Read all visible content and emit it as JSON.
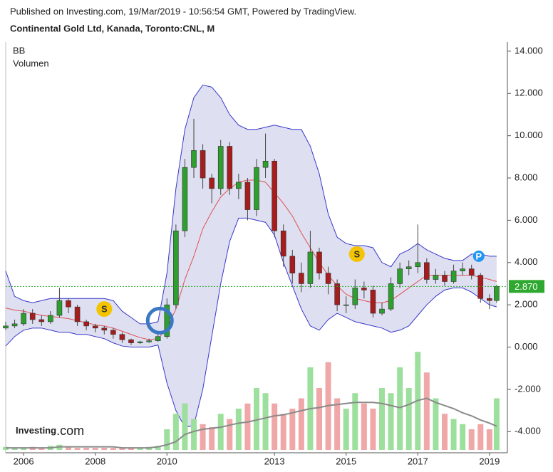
{
  "chart_data": {
    "type": "candlestick",
    "source": "Published on Investing.com, 19/Mar/2019 - 10:56:54 GMT, Powered by TradingView.",
    "title": "Continental Gold Ltd, Kanada, Toronto:CNL, M",
    "indicators": [
      "BB",
      "Volumen"
    ],
    "x": [
      2005.5,
      2005.75,
      2006,
      2006.25,
      2006.5,
      2006.75,
      2007,
      2007.25,
      2007.5,
      2007.75,
      2008,
      2008.25,
      2008.5,
      2008.75,
      2009,
      2009.25,
      2009.5,
      2009.75,
      2010,
      2010.25,
      2010.5,
      2010.75,
      2011,
      2011.25,
      2011.5,
      2011.75,
      2012,
      2012.25,
      2012.5,
      2012.75,
      2013,
      2013.25,
      2013.5,
      2013.75,
      2014,
      2014.25,
      2014.5,
      2014.75,
      2015,
      2015.25,
      2015.5,
      2015.75,
      2016,
      2016.25,
      2016.5,
      2016.75,
      2017,
      2017.25,
      2017.5,
      2017.75,
      2018,
      2018.25,
      2018.5,
      2018.75,
      2019,
      2019.2
    ],
    "open": [
      0.9,
      1.0,
      1.1,
      1.6,
      1.3,
      1.2,
      1.5,
      2.2,
      1.9,
      1.2,
      1.0,
      0.9,
      0.8,
      0.6,
      0.35,
      0.2,
      0.25,
      0.3,
      0.5,
      2.0,
      5.5,
      8.5,
      9.3,
      8.0,
      7.5,
      9.5,
      7.5,
      7.8,
      6.5,
      8.5,
      8.8,
      5.5,
      4.3,
      3.5,
      3.0,
      4.5,
      3.5,
      3.0,
      2.0,
      2.0,
      2.8,
      2.7,
      1.6,
      1.8,
      3.0,
      3.7,
      3.8,
      4.0,
      3.2,
      3.4,
      3.1,
      3.6,
      3.7,
      3.4,
      2.3,
      2.2
    ],
    "high": [
      1.2,
      1.3,
      1.8,
      1.8,
      1.5,
      1.7,
      2.8,
      2.3,
      2.0,
      1.3,
      1.1,
      1.0,
      0.9,
      0.7,
      0.4,
      0.3,
      0.4,
      0.7,
      2.3,
      5.8,
      8.9,
      10.8,
      9.6,
      8.2,
      9.8,
      9.7,
      8.2,
      8.0,
      8.9,
      10.1,
      8.9,
      5.8,
      4.6,
      4.0,
      5.5,
      4.7,
      3.8,
      3.2,
      2.4,
      3.2,
      3.1,
      2.9,
      2.1,
      3.3,
      4.0,
      4.1,
      5.8,
      4.2,
      3.7,
      3.6,
      3.9,
      4.0,
      3.9,
      3.5,
      2.5,
      2.95
    ],
    "low": [
      0.8,
      0.9,
      1.0,
      1.1,
      1.0,
      1.1,
      1.4,
      1.6,
      1.0,
      0.8,
      0.7,
      0.6,
      0.4,
      0.2,
      0.1,
      0.15,
      0.2,
      0.25,
      0.4,
      1.8,
      5.2,
      8.0,
      7.5,
      6.8,
      7.2,
      7.2,
      7.0,
      6.0,
      6.2,
      8.0,
      5.2,
      3.8,
      3.0,
      2.6,
      2.8,
      3.2,
      2.5,
      1.7,
      1.6,
      1.8,
      2.3,
      1.4,
      1.5,
      1.7,
      2.8,
      3.4,
      3.5,
      3.0,
      3.0,
      2.9,
      3.0,
      3.4,
      3.2,
      2.1,
      1.8,
      2.1
    ],
    "close": [
      1.0,
      1.1,
      1.6,
      1.3,
      1.2,
      1.5,
      2.2,
      1.9,
      1.2,
      1.0,
      0.9,
      0.8,
      0.6,
      0.35,
      0.2,
      0.25,
      0.3,
      0.5,
      2.0,
      5.5,
      8.5,
      9.3,
      8.0,
      7.5,
      9.5,
      7.5,
      7.8,
      6.5,
      8.5,
      8.8,
      5.5,
      4.3,
      3.5,
      3.0,
      4.5,
      3.5,
      3.0,
      2.0,
      2.0,
      2.8,
      2.7,
      1.6,
      1.8,
      3.0,
      3.7,
      3.8,
      4.0,
      3.2,
      3.4,
      3.1,
      3.6,
      3.7,
      3.4,
      2.3,
      2.2,
      2.87
    ],
    "up_color": "#2e9e2e",
    "down_color": "#a51d1d",
    "bands": {
      "upper": [
        3.6,
        2.4,
        2.2,
        2.1,
        2.2,
        2.3,
        2.3,
        2.3,
        2.3,
        2.3,
        2.3,
        2.3,
        2.2,
        1.7,
        1.4,
        1.1,
        1.1,
        1.2,
        3.5,
        7.5,
        10.3,
        11.8,
        12.4,
        12.3,
        11.8,
        11.0,
        10.5,
        10.3,
        10.3,
        10.4,
        10.5,
        10.4,
        10.3,
        10.3,
        9.5,
        8.2,
        6.3,
        5.2,
        4.9,
        4.8,
        4.8,
        4.7,
        4.0,
        3.8,
        4.4,
        4.6,
        4.9,
        4.6,
        4.4,
        4.2,
        4.1,
        4.1,
        4.4,
        4.4,
        4.3,
        4.3
      ],
      "middle": [
        1.85,
        1.75,
        1.7,
        1.6,
        1.5,
        1.45,
        1.4,
        1.35,
        1.25,
        1.15,
        1.05,
        1.0,
        0.9,
        0.75,
        0.6,
        0.45,
        0.35,
        0.4,
        0.9,
        1.8,
        3.2,
        4.3,
        5.6,
        6.4,
        7.1,
        7.5,
        7.8,
        7.9,
        7.9,
        7.8,
        7.3,
        6.8,
        6.2,
        5.4,
        4.7,
        4.0,
        3.4,
        2.9,
        2.5,
        2.3,
        2.2,
        2.1,
        2.1,
        2.2,
        2.5,
        2.8,
        3.1,
        3.4,
        3.4,
        3.4,
        3.4,
        3.4,
        3.4,
        3.3,
        3.2,
        3.1
      ],
      "lower": [
        0.05,
        0.5,
        0.8,
        0.9,
        0.9,
        0.8,
        0.7,
        0.7,
        0.6,
        0.6,
        0.5,
        0.4,
        0.2,
        0.05,
        0,
        0,
        0,
        0.1,
        -1.7,
        -3.0,
        -3.8,
        -3.7,
        -2.0,
        0.5,
        3.0,
        5.0,
        6.1,
        6.1,
        6.0,
        5.9,
        5.3,
        4.0,
        2.9,
        1.8,
        1.0,
        0.8,
        1.3,
        1.6,
        1.4,
        1.2,
        1.1,
        1.0,
        0.9,
        0.7,
        0.8,
        1.0,
        1.5,
        2.0,
        2.4,
        2.7,
        2.8,
        2.8,
        2.6,
        2.3,
        2.0,
        1.9
      ],
      "line_color": "#3838cc",
      "middle_color": "#e05050",
      "fill": "#dedff0"
    },
    "volume": {
      "values": [
        3,
        2,
        2,
        3,
        2,
        4,
        5,
        3,
        2,
        2,
        2,
        2,
        2,
        2,
        2,
        2,
        3,
        4,
        20,
        35,
        45,
        30,
        25,
        22,
        35,
        30,
        40,
        45,
        60,
        55,
        45,
        35,
        40,
        50,
        80,
        60,
        85,
        50,
        40,
        55,
        45,
        40,
        60,
        55,
        80,
        60,
        95,
        75,
        50,
        35,
        30,
        25,
        20,
        25,
        20,
        50
      ],
      "ma": [
        2,
        2,
        2,
        2,
        2,
        2,
        3,
        3,
        3,
        3,
        3,
        3,
        3,
        2,
        2,
        2,
        2,
        3,
        5,
        8,
        15,
        18,
        20,
        21,
        22,
        24,
        26,
        27,
        29,
        31,
        33,
        34,
        36,
        38,
        40,
        41,
        43,
        44,
        45,
        46,
        46,
        46,
        45,
        43,
        41,
        44,
        48,
        50,
        46,
        43,
        40,
        36,
        33,
        29,
        26,
        23
      ],
      "vlim": [
        0,
        100
      ],
      "up_color": "#9ddf9d",
      "down_color": "#efa7a7",
      "ma_color": "#8a8a8a"
    },
    "last_price": {
      "value": 2.87,
      "label": "2.870"
    },
    "last_color": "#2ea82e",
    "events": [
      {
        "label": "S",
        "x": 2008.25,
        "y": 1.8
      },
      {
        "label": "S",
        "x": 2015.3,
        "y": 4.4
      },
      {
        "label": "P",
        "x": 2018.7,
        "y": 4.3
      },
      {
        "x": 2009.8,
        "y": 1.25
      }
    ],
    "xlim": [
      2005.5,
      2019.5
    ],
    "xticks": [
      2006,
      2008,
      2010,
      2013,
      2015,
      2017,
      2019
    ],
    "ylim": [
      -5,
      14.4
    ],
    "yticks": [
      {
        "value": -4,
        "label": "-4.000"
      },
      {
        "value": -2,
        "label": "-2.000"
      },
      {
        "value": 0,
        "label": "0.000"
      },
      {
        "value": 2,
        "label": "2.000"
      },
      {
        "value": 4,
        "label": "4.000"
      },
      {
        "value": 6,
        "label": "6.000"
      },
      {
        "value": 8,
        "label": "8.000"
      },
      {
        "value": 10,
        "label": "10.000"
      },
      {
        "value": 12,
        "label": "12.000"
      },
      {
        "value": 14,
        "label": "14.000"
      }
    ]
  },
  "logo": {
    "name": "Investing",
    "suffix": ".com"
  }
}
